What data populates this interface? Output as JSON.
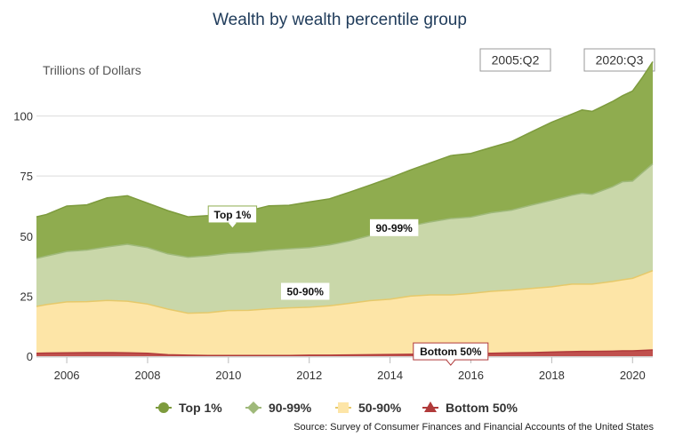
{
  "chart_data": {
    "type": "area",
    "stacked": true,
    "title": "Wealth by wealth percentile group",
    "ylabel": "Trillions of Dollars",
    "xlabel": "",
    "xlim": [
      2005.25,
      2020.5
    ],
    "ylim": [
      0,
      115
    ],
    "xticks": [
      2006,
      2008,
      2010,
      2012,
      2014,
      2016,
      2018,
      2020
    ],
    "yticks": [
      0,
      25,
      50,
      75,
      100
    ],
    "range_selector": {
      "start": "2005:Q2",
      "end": "2020:Q3"
    },
    "x": [
      2005.25,
      2005.5,
      2006.0,
      2006.5,
      2007.0,
      2007.5,
      2008.0,
      2008.5,
      2009.0,
      2009.5,
      2010.0,
      2010.5,
      2011.0,
      2011.5,
      2012.0,
      2012.5,
      2013.0,
      2013.5,
      2014.0,
      2014.5,
      2015.0,
      2015.5,
      2016.0,
      2016.5,
      2017.0,
      2017.5,
      2018.0,
      2018.5,
      2018.75,
      2019.0,
      2019.5,
      2019.75,
      2020.0,
      2020.25,
      2020.5
    ],
    "series": [
      {
        "name": "Bottom 50%",
        "color": "#b03a3a",
        "fill": "#c0504d",
        "values": [
          1.2,
          1.3,
          1.4,
          1.5,
          1.5,
          1.4,
          1.2,
          0.6,
          0.4,
          0.3,
          0.3,
          0.3,
          0.3,
          0.3,
          0.4,
          0.4,
          0.5,
          0.6,
          0.7,
          0.8,
          0.9,
          1.0,
          1.1,
          1.2,
          1.4,
          1.5,
          1.7,
          1.9,
          2.0,
          2.0,
          2.1,
          2.2,
          2.2,
          2.4,
          2.6
        ]
      },
      {
        "name": "50-90%",
        "color": "#e6c96a",
        "fill": "#fde5a7",
        "values": [
          19.5,
          20.2,
          21.2,
          21.2,
          21.7,
          21.5,
          20.5,
          19.0,
          17.5,
          17.8,
          18.7,
          18.8,
          19.4,
          19.8,
          20.0,
          20.6,
          21.5,
          22.5,
          23.0,
          24.2,
          24.6,
          24.5,
          25.0,
          25.8,
          26.1,
          26.7,
          27.2,
          28.1,
          28.0,
          28.0,
          29.0,
          29.6,
          30.2,
          31.6,
          33.0
        ]
      },
      {
        "name": "90-99%",
        "color": "#9fb97a",
        "fill": "#c9d7a9",
        "values": [
          20.0,
          20.2,
          21.0,
          21.5,
          22.3,
          23.7,
          23.5,
          23.0,
          23.3,
          23.7,
          23.8,
          24.1,
          24.4,
          24.6,
          24.8,
          25.3,
          26.0,
          27.1,
          28.3,
          29.2,
          30.4,
          31.8,
          31.8,
          32.7,
          33.3,
          34.7,
          36.0,
          37.0,
          37.8,
          37.4,
          39.4,
          40.8,
          40.5,
          42.5,
          44.5
        ]
      },
      {
        "name": "Top 1%",
        "color": "#7d9b3d",
        "fill": "#8fac4f",
        "values": [
          17.3,
          17.3,
          18.9,
          18.8,
          20.4,
          20.2,
          18.5,
          18.0,
          16.8,
          16.7,
          17.3,
          17.3,
          18.5,
          18.1,
          19.0,
          19.2,
          20.3,
          21.0,
          22.2,
          23.3,
          24.6,
          26.2,
          26.5,
          27.2,
          28.5,
          30.5,
          32.5,
          33.8,
          34.7,
          34.5,
          35.5,
          35.8,
          37.5,
          39.7,
          42.5
        ]
      }
    ],
    "annotations": [
      {
        "text": "Top 1%",
        "x": 2010.1,
        "y": 59.0,
        "border": "#8fac4f"
      },
      {
        "text": "90-99%",
        "x": 2014.1,
        "y": 53.5,
        "border": ""
      },
      {
        "text": "50-90%",
        "x": 2011.9,
        "y": 27.0,
        "border": ""
      },
      {
        "text": "Bottom 50%",
        "x": 2015.5,
        "y": 2.0,
        "border": "#b03a3a"
      }
    ],
    "legend_order": [
      "Top 1%",
      "90-99%",
      "50-90%",
      "Bottom 50%"
    ],
    "legend_markers": {
      "Top 1%": "circle",
      "90-99%": "diamond",
      "50-90%": "square",
      "Bottom 50%": "triangle"
    },
    "legend_placement": "bottom"
  },
  "source": "Source: Survey of Consumer Finances and Financial Accounts of the United States"
}
